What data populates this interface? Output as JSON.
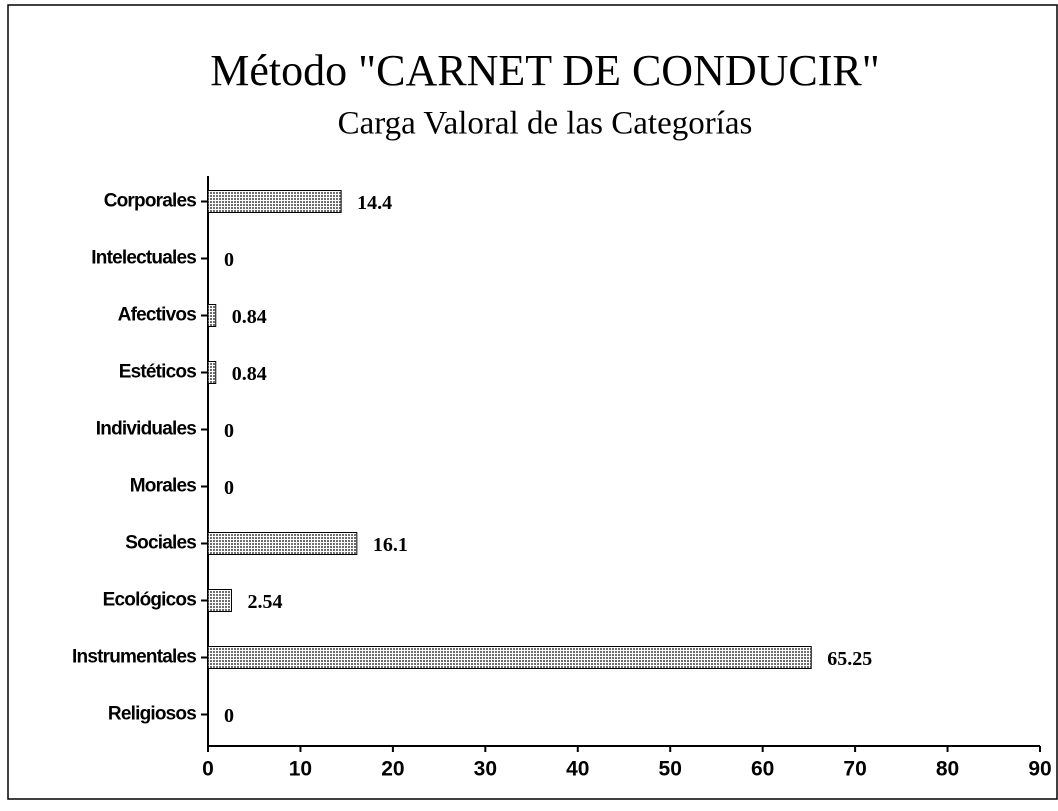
{
  "chart_data": {
    "type": "bar",
    "orientation": "horizontal",
    "title": "Método \"CARNET DE CONDUCIR\"",
    "subtitle": "Carga Valoral de las Categorías",
    "categories": [
      "Corporales",
      "Intelectuales",
      "Afectivos",
      "Estéticos",
      "Individuales",
      "Morales",
      "Sociales",
      "Ecológicos",
      "Instrumentales",
      "Religiosos"
    ],
    "values": [
      14.4,
      0,
      0.84,
      0.84,
      0,
      0,
      16.1,
      2.54,
      65.25,
      0
    ],
    "color": "#6e6e6e",
    "xlim": [
      0,
      90
    ],
    "xticks": [
      0,
      10,
      20,
      30,
      40,
      50,
      60,
      70,
      80,
      90
    ],
    "grid": false
  }
}
